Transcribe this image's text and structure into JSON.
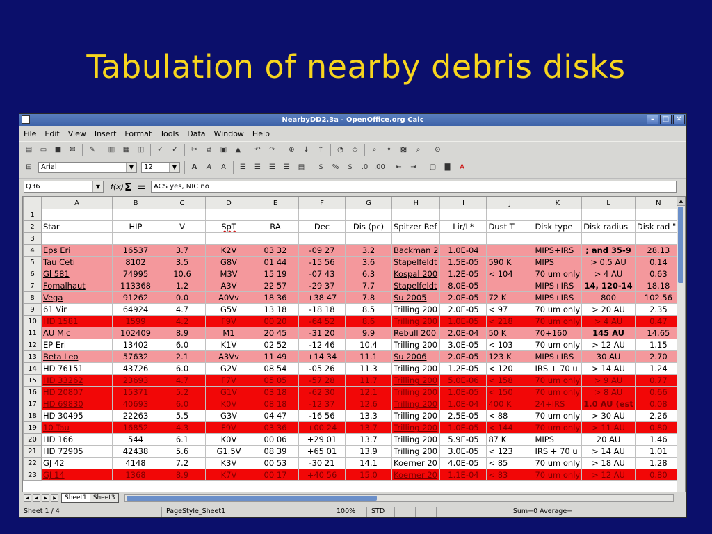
{
  "slide": {
    "title": "Tabulation of nearby debris disks"
  },
  "window": {
    "title": "NearbyDD2.3a - OpenOffice.org Calc",
    "menu": [
      "File",
      "Edit",
      "View",
      "Insert",
      "Format",
      "Tools",
      "Data",
      "Window",
      "Help"
    ],
    "font_name": "Arial",
    "font_size": "12",
    "name_box": "Q36",
    "formula": "ACS yes, NIC no"
  },
  "sheet": {
    "columns": [
      "A",
      "B",
      "C",
      "D",
      "E",
      "F",
      "G",
      "H",
      "I",
      "J",
      "K",
      "L",
      "N"
    ],
    "headers": [
      "Star",
      "HIP",
      "V",
      "SpT",
      "RA",
      "Dec",
      "Dis (pc)",
      "Spitzer Ref",
      "Lir/L*",
      "Dust T",
      "Disk type",
      "Disk radius",
      "Disk rad \""
    ],
    "rows": [
      {
        "n": "4",
        "style": "pink",
        "cells": [
          "Eps Eri",
          "16537",
          "3.7",
          "K2V",
          "03 32",
          "-09 27",
          "3.2",
          "Backman 2",
          "1.0E-04",
          "",
          "MIPS+IRS",
          "; and 35-9",
          "28.13"
        ]
      },
      {
        "n": "5",
        "style": "pink",
        "cells": [
          "Tau Ceti",
          "8102",
          "3.5",
          "G8V",
          "01 44",
          "-15 56",
          "3.6",
          "Stapelfeldt",
          "1.5E-05",
          "590 K",
          "MIPS",
          "> 0.5 AU",
          "0.14"
        ]
      },
      {
        "n": "6",
        "style": "pink",
        "cells": [
          "Gl 581",
          "74995",
          "10.6",
          "M3V",
          "15 19",
          "-07 43",
          "6.3",
          "Kospal 200",
          "1.2E-05",
          "< 104",
          "70 um only",
          "> 4 AU",
          "0.63"
        ]
      },
      {
        "n": "7",
        "style": "pink",
        "cells": [
          "Fomalhaut",
          "113368",
          "1.2",
          "A3V",
          "22 57",
          "-29 37",
          "7.7",
          "Stapelfeldt",
          "8.0E-05",
          "",
          "MIPS+IRS",
          "14, 120-14",
          "18.18"
        ]
      },
      {
        "n": "8",
        "style": "pink",
        "cells": [
          "Vega",
          "91262",
          "0.0",
          "A0Vv",
          "18 36",
          "+38 47",
          "7.8",
          "Su 2005",
          "2.0E-05",
          "72 K",
          "MIPS+IRS",
          "800",
          "102.56"
        ]
      },
      {
        "n": "9",
        "style": "white",
        "cells": [
          "61 Vir",
          "64924",
          "4.7",
          "G5V",
          "13 18",
          "-18 18",
          "8.5",
          "Trilling 200",
          "2.0E-05",
          "< 97",
          "70 um only",
          "> 20 AU",
          "2.35"
        ]
      },
      {
        "n": "10",
        "style": "red",
        "cells": [
          "HD 1581",
          "1599",
          "4.2",
          "F9V",
          "00 20",
          "-64 52",
          "8.6",
          "Trilling 200",
          "1.0E-05",
          "< 218",
          "70 um only",
          "> 4 AU",
          "0.47"
        ]
      },
      {
        "n": "11",
        "style": "pink",
        "cells": [
          "AU Mic",
          "102409",
          "8.9",
          "M1",
          "20 45",
          "-31 20",
          "9.9",
          "Rebull 200",
          "2.0E-04",
          "50 K",
          "70+160",
          "145 AU",
          "14.65"
        ]
      },
      {
        "n": "12",
        "style": "white",
        "cells": [
          "EP Eri",
          "13402",
          "6.0",
          "K1V",
          "02 52",
          "-12 46",
          "10.4",
          "Trilling 200",
          "3.0E-05",
          "< 103",
          "70 um only",
          "> 12 AU",
          "1.15"
        ]
      },
      {
        "n": "13",
        "style": "pink",
        "cells": [
          "Beta Leo",
          "57632",
          "2.1",
          "A3Vv",
          "11 49",
          "+14 34",
          "11.1",
          "Su 2006",
          "2.0E-05",
          "123 K",
          "MIPS+IRS",
          "30 AU",
          "2.70"
        ]
      },
      {
        "n": "14",
        "style": "white",
        "cells": [
          "HD 76151",
          "43726",
          "6.0",
          "G2V",
          "08 54",
          "-05 26",
          "11.3",
          "Trilling 200",
          "1.2E-05",
          "< 120",
          "IRS + 70 u",
          "> 14 AU",
          "1.24"
        ]
      },
      {
        "n": "15",
        "style": "red",
        "cells": [
          "HD 33262",
          "23693",
          "4.7",
          "F7V",
          "05 05",
          "-57 28",
          "11.7",
          "Trilling 200",
          "5.0E-06",
          "< 158",
          "70 um only",
          "> 9 AU",
          "0.77"
        ]
      },
      {
        "n": "16",
        "style": "red",
        "cells": [
          "HD 20807",
          "15371",
          "5.2",
          "G1V",
          "03 18",
          "-62 30",
          "12.1",
          "Trilling 200",
          "1.0E-05",
          "< 150",
          "70 um only",
          "> 8 AU",
          "0.66"
        ]
      },
      {
        "n": "17",
        "style": "red",
        "cells": [
          "HD 69830",
          "40693",
          "6.0",
          "K0V",
          "08 18",
          "-12 37",
          "12.6",
          "Trilling 200",
          "1.0E-04",
          "400 K",
          "24+IRS",
          "1.0 AU (est",
          "0.08"
        ]
      },
      {
        "n": "18",
        "style": "white",
        "cells": [
          "HD 30495",
          "22263",
          "5.5",
          "G3V",
          "04 47",
          "-16 56",
          "13.3",
          "Trilling 200",
          "2.5E-05",
          "< 88",
          "70 um only",
          "> 30 AU",
          "2.26"
        ]
      },
      {
        "n": "19",
        "style": "red",
        "cells": [
          "10 Tau",
          "16852",
          "4.3",
          "F9V",
          "03 36",
          "+00 24",
          "13.7",
          "Trilling 200",
          "1.0E-05",
          "< 144",
          "70 um only",
          "> 11 AU",
          "0.80"
        ]
      },
      {
        "n": "20",
        "style": "white",
        "cells": [
          "HD 166",
          "544",
          "6.1",
          "K0V",
          "00 06",
          "+29 01",
          "13.7",
          "Trilling 200",
          "5.9E-05",
          "87 K",
          "MIPS",
          "20 AU",
          "1.46"
        ]
      },
      {
        "n": "21",
        "style": "white",
        "cells": [
          "HD 72905",
          "42438",
          "5.6",
          "G1.5V",
          "08 39",
          "+65 01",
          "13.9",
          "Trilling 200",
          "3.0E-05",
          "< 123",
          "IRS + 70 u",
          "> 14 AU",
          "1.01"
        ]
      },
      {
        "n": "22",
        "style": "white",
        "cells": [
          "GJ 42",
          "4148",
          "7.2",
          "K3V",
          "00 53",
          "-30 21",
          "14.1",
          "Koerner 20",
          "4.0E-05",
          "< 85",
          "70 um only",
          "> 18 AU",
          "1.28"
        ]
      },
      {
        "n": "23",
        "style": "red",
        "cells": [
          "GJ 14",
          "1368",
          "8.9",
          "K7V",
          "00 17",
          "+40 56",
          "15.0",
          "Koerner 20",
          "1.1E-04",
          "< 83",
          "70 um only",
          "> 12 AU",
          "0.80"
        ]
      }
    ]
  },
  "tabs": {
    "active": "Sheet1",
    "inactive": "Sheet3"
  },
  "status": {
    "sheet": "Sheet 1 / 4",
    "pagestyle": "PageStyle_Sheet1",
    "zoom": "100%",
    "mode": "STD",
    "sum": "Sum=0 Average="
  }
}
